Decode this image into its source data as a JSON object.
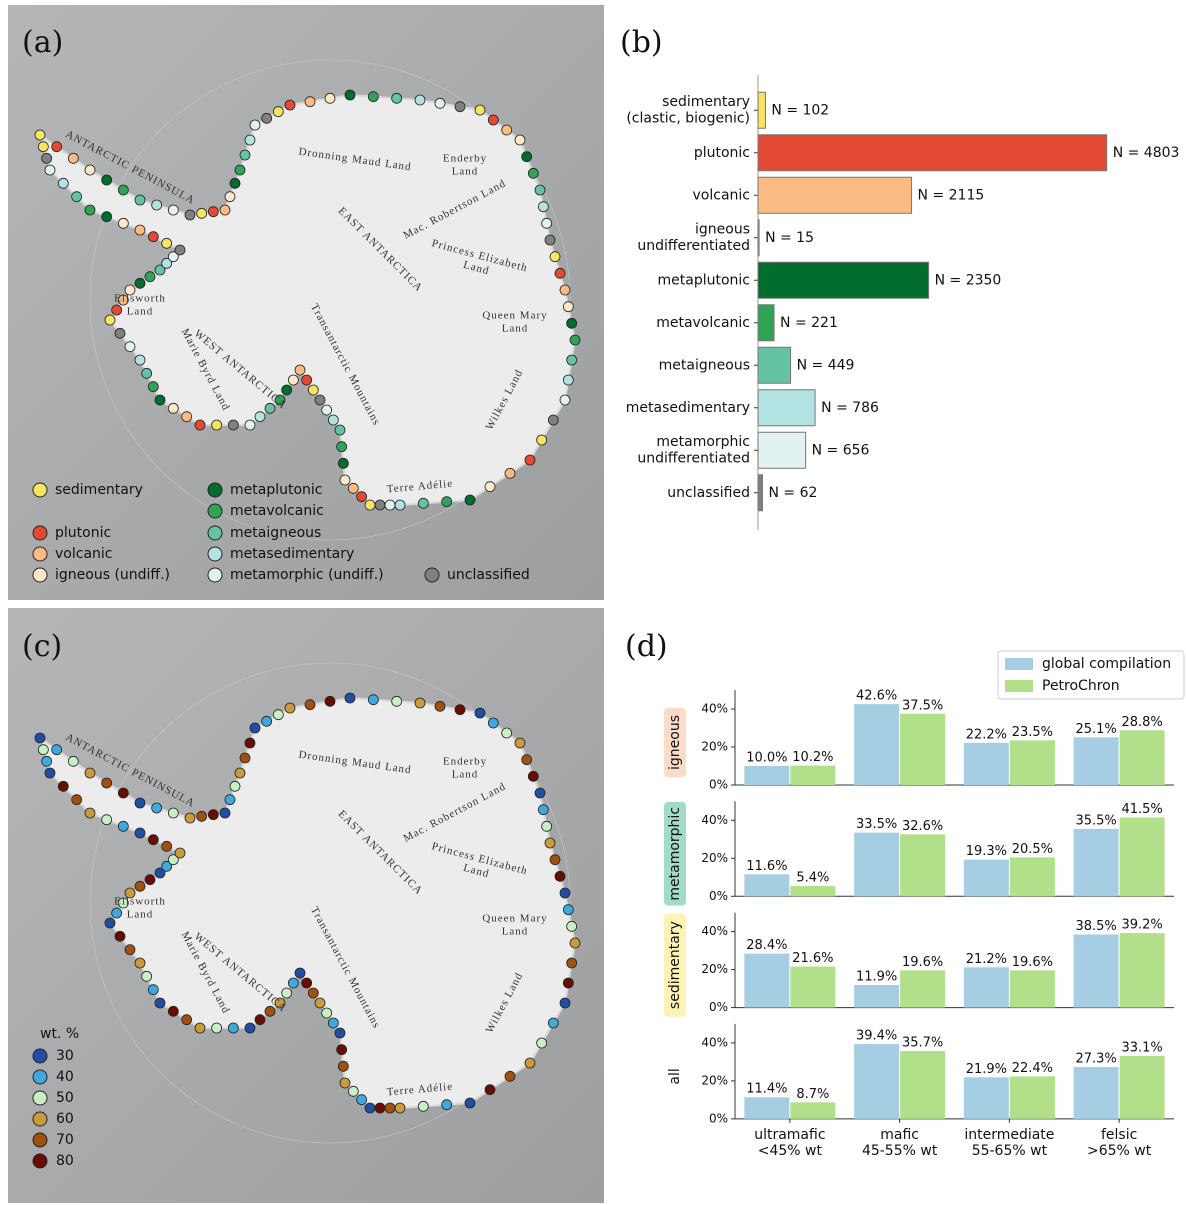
{
  "panel_labels": [
    "(a)",
    "(b)",
    "(c)",
    "(d)"
  ],
  "map_labels": [
    "ANTARCTIC PENINSULA",
    "Dronning Maud Land",
    "Enderby\nLand",
    "EAST ANTARCTICA",
    "Mac. Robertson Land",
    "Princess Elizabeth\nLand",
    "Queen Mary\nLand",
    "Ellsworth\nLand",
    "WEST ANTARCTICA",
    "Marie Byrd Land",
    "Transantarctic Mountains",
    "Wilkes Land",
    "Terre Adélie"
  ],
  "map_a_legend": [
    {
      "name": "sedimentary",
      "color": "#f7e463"
    },
    {
      "name": "plutonic",
      "color": "#e34a33"
    },
    {
      "name": "volcanic",
      "color": "#fdbb84"
    },
    {
      "name": "igneous (undiff.)",
      "color": "#fee8c8"
    },
    {
      "name": "metaplutonic",
      "color": "#006d2c"
    },
    {
      "name": "metavolcanic",
      "color": "#31a354"
    },
    {
      "name": "metaigneous",
      "color": "#66c2a4"
    },
    {
      "name": "metasedimentary",
      "color": "#b2e2e2"
    },
    {
      "name": "metamorphic (undiff.)",
      "color": "#e0f3f0"
    },
    {
      "name": "unclassified",
      "color": "#808080"
    }
  ],
  "map_c_legend": {
    "title": "wt. %",
    "entries": [
      {
        "value": 30,
        "color": "#1f4fa3"
      },
      {
        "value": 40,
        "color": "#3fa9dd"
      },
      {
        "value": 50,
        "color": "#c9efc4"
      },
      {
        "value": 60,
        "color": "#c99b3c"
      },
      {
        "value": 70,
        "color": "#a0500f"
      },
      {
        "value": 80,
        "color": "#6b0c00"
      }
    ]
  },
  "chart_data": [
    {
      "type": "bar",
      "orientation": "horizontal",
      "categories": [
        "sedimentary\n(clastic, biogenic)",
        "plutonic",
        "volcanic",
        "igneous\nundifferentiated",
        "metaplutonic",
        "metavolcanic",
        "metaigneous",
        "metasedimentary",
        "metamorphic\nundifferentiated",
        "unclassified"
      ],
      "values": [
        102,
        4803,
        2115,
        15,
        2350,
        221,
        449,
        786,
        656,
        62
      ],
      "value_labels": [
        "N = 102",
        "N = 4803",
        "N = 2115",
        "N = 15",
        "N = 2350",
        "N = 221",
        "N = 449",
        "N = 786",
        "N = 656",
        "N = 62"
      ],
      "colors": [
        "#f7e463",
        "#e34a33",
        "#fdbb84",
        "#fee8c8",
        "#006d2c",
        "#31a354",
        "#66c2a4",
        "#b2e2e2",
        "#e0f3f0",
        "#808080"
      ],
      "xlim": [
        0,
        5000
      ]
    },
    {
      "type": "bar",
      "ylabel": "igneous",
      "ylabel_color": "#fcdcc8",
      "legend": "upper right",
      "series": [
        {
          "name": "global compilation",
          "color": "#a6cee3",
          "values": [
            10.0,
            42.6,
            22.2,
            25.1
          ],
          "value_labels": [
            "10.0%",
            "42.6%",
            "22.2%",
            "25.1%"
          ]
        },
        {
          "name": "PetroChron",
          "color": "#b2df8a",
          "values": [
            10.2,
            37.5,
            23.5,
            28.8
          ],
          "value_labels": [
            "10.2%",
            "37.5%",
            "23.5%",
            "28.8%"
          ]
        }
      ],
      "ylim": [
        0,
        50
      ],
      "yticks": [
        {
          "value": 0,
          "label": "0%"
        },
        {
          "value": 20,
          "label": "20%"
        },
        {
          "value": 40,
          "label": "40%"
        }
      ]
    },
    {
      "type": "bar",
      "ylabel": "metamorphic",
      "ylabel_color": "#a3dcc6",
      "series": [
        {
          "color": "#a6cee3",
          "values": [
            11.6,
            33.5,
            19.3,
            35.5
          ],
          "value_labels": [
            "11.6%",
            "33.5%",
            "19.3%",
            "35.5%"
          ]
        },
        {
          "color": "#b2df8a",
          "values": [
            5.4,
            32.6,
            20.5,
            41.5
          ],
          "value_labels": [
            "5.4%",
            "32.6%",
            "20.5%",
            "41.5%"
          ]
        }
      ],
      "ylim": [
        0,
        50
      ],
      "yticks": [
        {
          "value": 0,
          "label": "0%"
        },
        {
          "value": 20,
          "label": "20%"
        },
        {
          "value": 40,
          "label": "40%"
        }
      ]
    },
    {
      "type": "bar",
      "ylabel": "sedimentary",
      "ylabel_color": "#fdf3b4",
      "series": [
        {
          "color": "#a6cee3",
          "values": [
            28.4,
            11.9,
            21.2,
            38.5
          ],
          "value_labels": [
            "28.4%",
            "11.9%",
            "21.2%",
            "38.5%"
          ]
        },
        {
          "color": "#b2df8a",
          "values": [
            21.6,
            19.6,
            19.6,
            39.2
          ],
          "value_labels": [
            "21.6%",
            "19.6%",
            "19.6%",
            "39.2%"
          ]
        }
      ],
      "ylim": [
        0,
        50
      ],
      "yticks": [
        {
          "value": 0,
          "label": "0%"
        },
        {
          "value": 20,
          "label": "20%"
        },
        {
          "value": 40,
          "label": "40%"
        }
      ]
    },
    {
      "type": "bar",
      "ylabel": "all",
      "categories": [
        "ultramafic\n<45% wt",
        "mafic\n45-55% wt",
        "intermediate\n55-65% wt",
        "felsic\n>65% wt"
      ],
      "series": [
        {
          "color": "#a6cee3",
          "values": [
            11.4,
            39.4,
            21.9,
            27.3
          ],
          "value_labels": [
            "11.4%",
            "39.4%",
            "21.9%",
            "27.3%"
          ]
        },
        {
          "color": "#b2df8a",
          "values": [
            8.7,
            35.7,
            22.4,
            33.1
          ],
          "value_labels": [
            "8.7%",
            "35.7%",
            "22.4%",
            "33.1%"
          ]
        }
      ],
      "ylim": [
        0,
        50
      ],
      "yticks": [
        {
          "value": 0,
          "label": "0%"
        },
        {
          "value": 20,
          "label": "20%"
        },
        {
          "value": 40,
          "label": "40%"
        }
      ]
    }
  ]
}
